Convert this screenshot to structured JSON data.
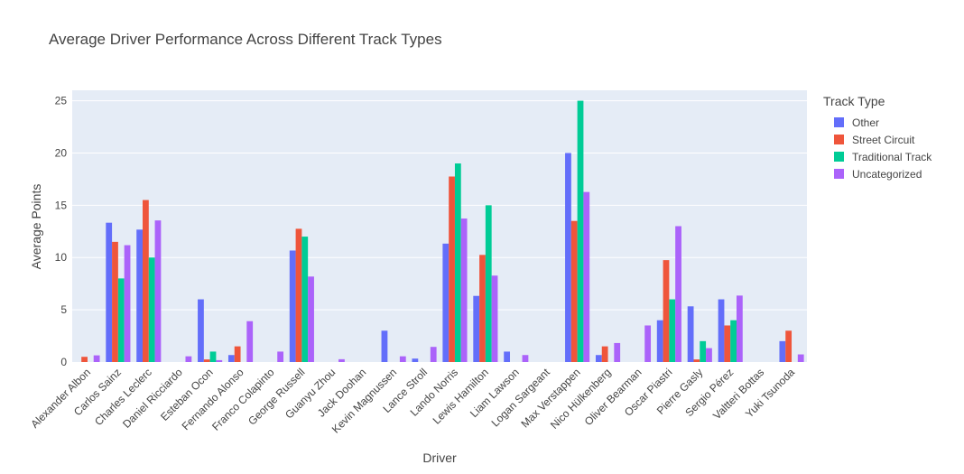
{
  "chart_data": {
    "type": "bar",
    "title": "Average Driver Performance Across Different Track Types",
    "xlabel": "Driver",
    "ylabel": "Average Points",
    "ylim": [
      0,
      26
    ],
    "yticks": [
      0,
      5,
      10,
      15,
      20,
      25
    ],
    "grid": true,
    "legend_title": "Track Type",
    "legend_position": "right",
    "categories": [
      "Alexander Albon",
      "Carlos Sainz",
      "Charles Leclerc",
      "Daniel Ricciardo",
      "Esteban Ocon",
      "Fernando Alonso",
      "Franco Colapinto",
      "George Russell",
      "Guanyu Zhou",
      "Jack Doohan",
      "Kevin Magnussen",
      "Lance Stroll",
      "Lando Norris",
      "Lewis Hamilton",
      "Liam Lawson",
      "Logan Sargeant",
      "Max Verstappen",
      "Nico Hülkenberg",
      "Oliver Bearman",
      "Oscar Piastri",
      "Pierre Gasly",
      "Sergio Pérez",
      "Valtteri Bottas",
      "Yuki Tsunoda"
    ],
    "series": [
      {
        "name": "Other",
        "color": "#636efa",
        "values": [
          null,
          13.33,
          12.67,
          null,
          6,
          0.67,
          null,
          10.67,
          null,
          null,
          3,
          0.33,
          11.33,
          6.33,
          1,
          null,
          20,
          0.67,
          null,
          4,
          5.33,
          6,
          null,
          2
        ]
      },
      {
        "name": "Street Circuit",
        "color": "#ef553b",
        "values": [
          0.5,
          11.5,
          15.5,
          null,
          0.25,
          1.5,
          null,
          12.75,
          null,
          null,
          null,
          null,
          17.75,
          10.25,
          null,
          null,
          13.5,
          1.5,
          null,
          9.75,
          0.25,
          3.5,
          null,
          3
        ]
      },
      {
        "name": "Traditional Track",
        "color": "#00cc96",
        "values": [
          null,
          8,
          10,
          null,
          1,
          null,
          null,
          12,
          null,
          null,
          null,
          null,
          19,
          15,
          null,
          null,
          25,
          null,
          null,
          6,
          2,
          4,
          null,
          null
        ]
      },
      {
        "name": "Uncategorized",
        "color": "#ab63fa",
        "values": [
          0.64,
          11.18,
          13.55,
          0.55,
          0.18,
          3.91,
          1,
          8.18,
          0.27,
          null,
          0.55,
          1.45,
          13.73,
          8.27,
          0.67,
          null,
          16.27,
          1.82,
          3.5,
          13,
          1.33,
          6.36,
          null,
          0.73
        ]
      }
    ]
  }
}
